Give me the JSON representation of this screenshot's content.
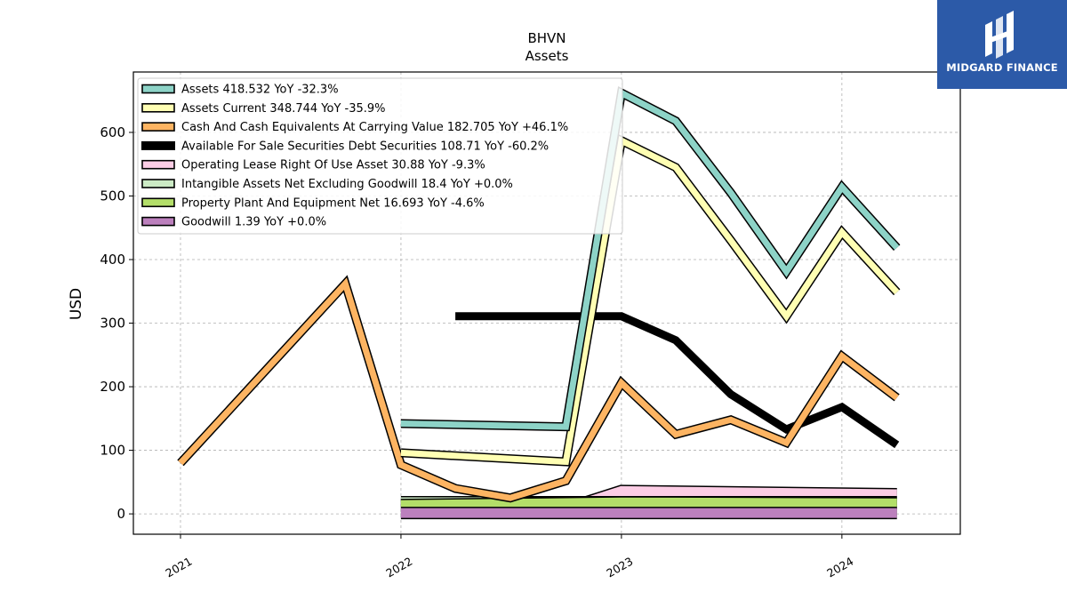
{
  "brand": {
    "name": "MIDGARD FINANCE",
    "color": "#2c5aa8"
  },
  "chart_data": {
    "type": "line",
    "title": "BHVN",
    "subtitle": "Assets",
    "ylabel": "USD",
    "xlabel": "",
    "ylim": [
      -32,
      695
    ],
    "yticks": [
      0,
      100,
      200,
      300,
      400,
      500,
      600
    ],
    "xlim": [
      "2020-10-15",
      "2024-07-15"
    ],
    "xticks": [
      {
        "label": "2021",
        "date": "2021-01-01"
      },
      {
        "label": "2022",
        "date": "2022-01-01"
      },
      {
        "label": "2023",
        "date": "2023-01-01"
      },
      {
        "label": "2024",
        "date": "2024-01-01"
      }
    ],
    "grid": true,
    "legend_position": "top-left",
    "series": [
      {
        "name": "Assets",
        "legend": "Assets  418.532 YoY -32.3%",
        "color": "#8dd3c7",
        "style": "outlined",
        "points": [
          [
            "2022-01-01",
            142
          ],
          [
            "2022-10-01",
            137
          ],
          [
            "2023-01-01",
            662
          ],
          [
            "2023-04-01",
            618
          ],
          [
            "2023-07-01",
            505
          ],
          [
            "2023-10-01",
            381
          ],
          [
            "2024-01-01",
            514
          ],
          [
            "2024-04-01",
            418.532
          ]
        ]
      },
      {
        "name": "Assets Current",
        "legend": "Assets Current  348.744 YoY -35.9%",
        "color": "#ffffb3",
        "style": "outlined",
        "points": [
          [
            "2022-01-01",
            96
          ],
          [
            "2022-10-01",
            82
          ],
          [
            "2023-01-01",
            587
          ],
          [
            "2023-04-01",
            545
          ],
          [
            "2023-07-01",
            430
          ],
          [
            "2023-10-01",
            311
          ],
          [
            "2024-01-01",
            443
          ],
          [
            "2024-04-01",
            348.744
          ]
        ]
      },
      {
        "name": "Cash And Cash Equivalents At Carrying Value",
        "legend": "Cash And Cash Equivalents At Carrying Value  182.705 YoY +46.1%",
        "color": "#fdb462",
        "style": "outlined",
        "points": [
          [
            "2021-01-01",
            80
          ],
          [
            "2021-10-01",
            362
          ],
          [
            "2022-01-01",
            77
          ],
          [
            "2022-04-01",
            40
          ],
          [
            "2022-07-01",
            25
          ],
          [
            "2022-10-01",
            52
          ],
          [
            "2023-01-01",
            206
          ],
          [
            "2023-04-01",
            125
          ],
          [
            "2023-07-01",
            148
          ],
          [
            "2023-10-01",
            112
          ],
          [
            "2024-01-01",
            248
          ],
          [
            "2024-04-01",
            182.705
          ]
        ]
      },
      {
        "name": "Available For Sale Securities Debt Securities",
        "legend": "Available For Sale Securities Debt Securities  108.71 YoY -60.2%",
        "color": "#000000",
        "style": "thick",
        "points": [
          [
            "2022-04-01",
            311
          ],
          [
            "2023-01-01",
            311
          ],
          [
            "2023-04-01",
            273
          ],
          [
            "2023-07-01",
            188
          ],
          [
            "2023-10-01",
            133
          ],
          [
            "2024-01-01",
            168
          ],
          [
            "2024-04-01",
            108.71
          ]
        ]
      },
      {
        "name": "Operating Lease Right Of Use Asset",
        "legend": "Operating Lease Right Of Use Asset  30.88 YoY -9.3%",
        "color": "#fccde5",
        "style": "band",
        "points": [
          [
            "2022-10-01",
            8
          ],
          [
            "2023-01-01",
            36
          ],
          [
            "2024-04-01",
            30.88
          ]
        ]
      },
      {
        "name": "Intangible Assets Net Excluding Goodwill",
        "legend": "Intangible Assets Net Excluding Goodwill  18.4 YoY +0.0%",
        "color": "#ccebc5",
        "style": "band",
        "points": [
          [
            "2022-01-01",
            18.4
          ],
          [
            "2024-04-01",
            18.4
          ]
        ]
      },
      {
        "name": "Property Plant And Equipment Net",
        "legend": "Property Plant And Equipment Net  16.693 YoY -4.6%",
        "color": "#b3de69",
        "style": "band",
        "points": [
          [
            "2022-01-01",
            14
          ],
          [
            "2022-10-01",
            17
          ],
          [
            "2023-01-01",
            18
          ],
          [
            "2024-04-01",
            16.693
          ]
        ]
      },
      {
        "name": "Goodwill",
        "legend": "Goodwill  1.39 YoY +0.0%",
        "color": "#bc80bd",
        "style": "band",
        "points": [
          [
            "2022-01-01",
            1.39
          ],
          [
            "2024-04-01",
            1.39
          ]
        ]
      }
    ]
  }
}
